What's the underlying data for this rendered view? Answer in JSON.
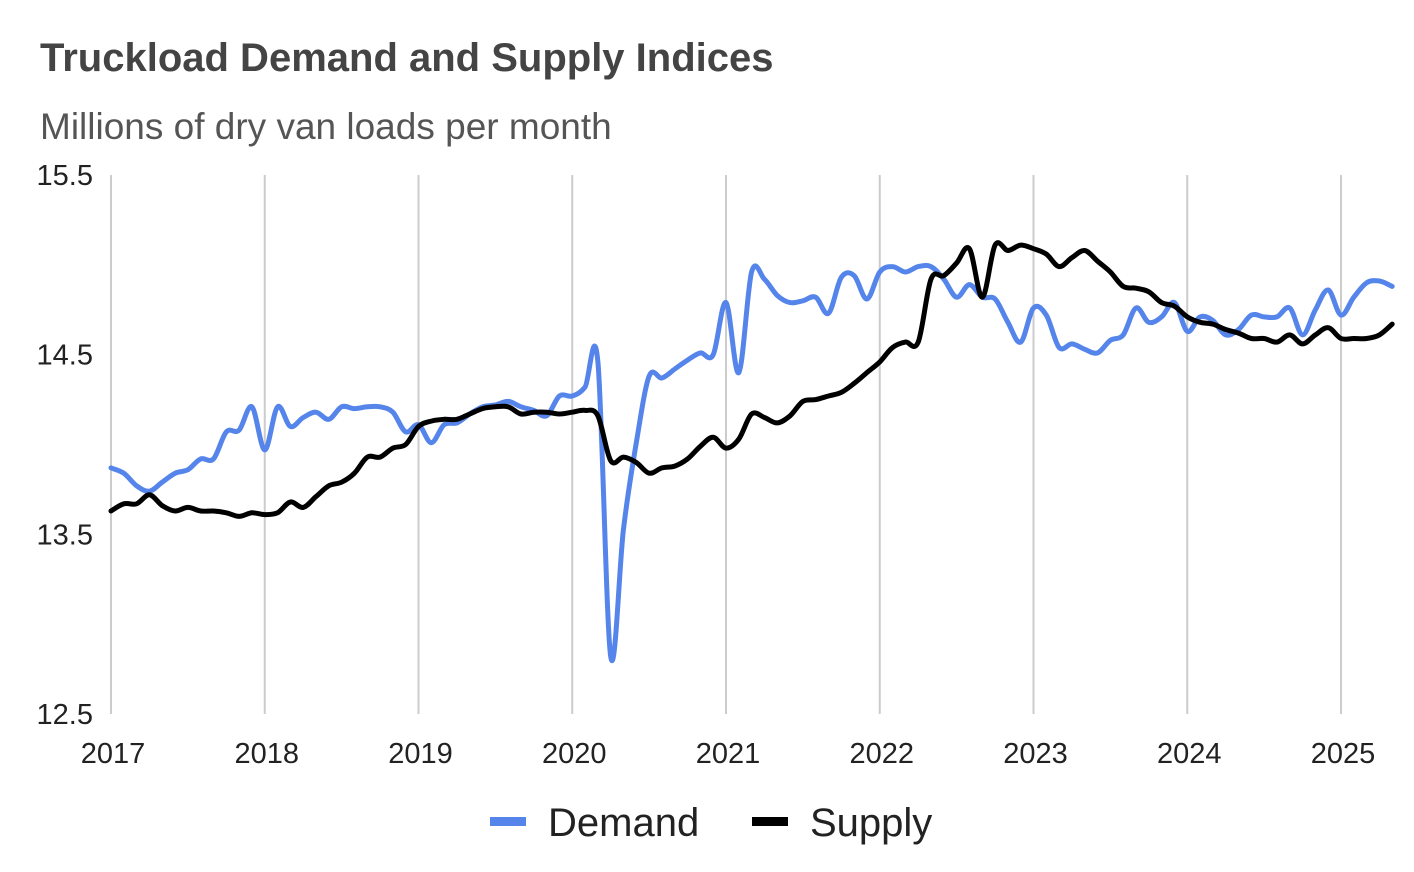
{
  "chart_data": {
    "type": "line",
    "title": "Truckload Demand and Supply Indices",
    "subtitle": "Millions of dry van loads per month",
    "xlabel": "",
    "ylabel": "",
    "x_start_year": 2017,
    "x_step": "monthly",
    "x_start_month": "2017-01",
    "x_end_month": "2025-05",
    "xlim": [
      2017,
      2025.33
    ],
    "ylim": [
      12.5,
      15.5
    ],
    "y_ticks": [
      "12.5",
      "13.5",
      "14.5",
      "15.5"
    ],
    "y_tick_values": [
      12.5,
      13.5,
      14.5,
      15.5
    ],
    "x_ticks": [
      "2017",
      "2018",
      "2019",
      "2020",
      "2021",
      "2022",
      "2023",
      "2024",
      "2025"
    ],
    "grid": "vertical",
    "legend_position": "bottom",
    "series": [
      {
        "name": "Demand",
        "color": "#5585EA",
        "values": [
          13.87,
          13.84,
          13.77,
          13.74,
          13.79,
          13.84,
          13.86,
          13.92,
          13.92,
          14.07,
          14.08,
          14.21,
          13.97,
          14.21,
          14.1,
          14.15,
          14.18,
          14.14,
          14.21,
          14.2,
          14.21,
          14.21,
          14.18,
          14.07,
          14.11,
          14.01,
          14.11,
          14.12,
          14.17,
          14.21,
          14.22,
          14.24,
          14.21,
          14.19,
          14.16,
          14.27,
          14.27,
          14.32,
          14.46,
          12.82,
          13.53,
          14.01,
          14.38,
          14.37,
          14.42,
          14.47,
          14.51,
          14.5,
          14.79,
          14.4,
          14.96,
          14.92,
          14.83,
          14.79,
          14.8,
          14.82,
          14.73,
          14.93,
          14.94,
          14.81,
          14.96,
          14.99,
          14.96,
          14.99,
          14.99,
          14.92,
          14.82,
          14.89,
          14.82,
          14.81,
          14.68,
          14.57,
          14.76,
          14.72,
          14.54,
          14.56,
          14.53,
          14.51,
          14.58,
          14.61,
          14.76,
          14.68,
          14.71,
          14.79,
          14.63,
          14.71,
          14.69,
          14.61,
          14.64,
          14.72,
          14.71,
          14.71,
          14.76,
          14.61,
          14.75,
          14.86,
          14.72,
          14.82,
          14.9,
          14.91,
          14.88
        ]
      },
      {
        "name": "Supply",
        "color": "#000000",
        "values": [
          13.63,
          13.67,
          13.67,
          13.72,
          13.66,
          13.63,
          13.65,
          13.63,
          13.63,
          13.62,
          13.6,
          13.62,
          13.61,
          13.62,
          13.68,
          13.65,
          13.71,
          13.77,
          13.79,
          13.84,
          13.93,
          13.93,
          13.98,
          14.0,
          14.1,
          14.13,
          14.14,
          14.14,
          14.17,
          14.2,
          14.21,
          14.21,
          14.17,
          14.18,
          14.18,
          14.17,
          14.18,
          14.19,
          14.16,
          13.91,
          13.93,
          13.9,
          13.84,
          13.87,
          13.88,
          13.92,
          13.99,
          14.04,
          13.98,
          14.03,
          14.17,
          14.15,
          14.12,
          14.16,
          14.24,
          14.25,
          14.27,
          14.29,
          14.34,
          14.4,
          14.46,
          14.54,
          14.57,
          14.57,
          14.92,
          14.94,
          15.01,
          15.09,
          14.82,
          15.11,
          15.08,
          15.11,
          15.09,
          15.06,
          14.99,
          15.04,
          15.08,
          15.02,
          14.96,
          14.88,
          14.87,
          14.85,
          14.79,
          14.77,
          14.71,
          14.68,
          14.67,
          14.64,
          14.62,
          14.59,
          14.59,
          14.57,
          14.61,
          14.56,
          14.61,
          14.65,
          14.59,
          14.59,
          14.59,
          14.61,
          14.67
        ]
      }
    ]
  }
}
